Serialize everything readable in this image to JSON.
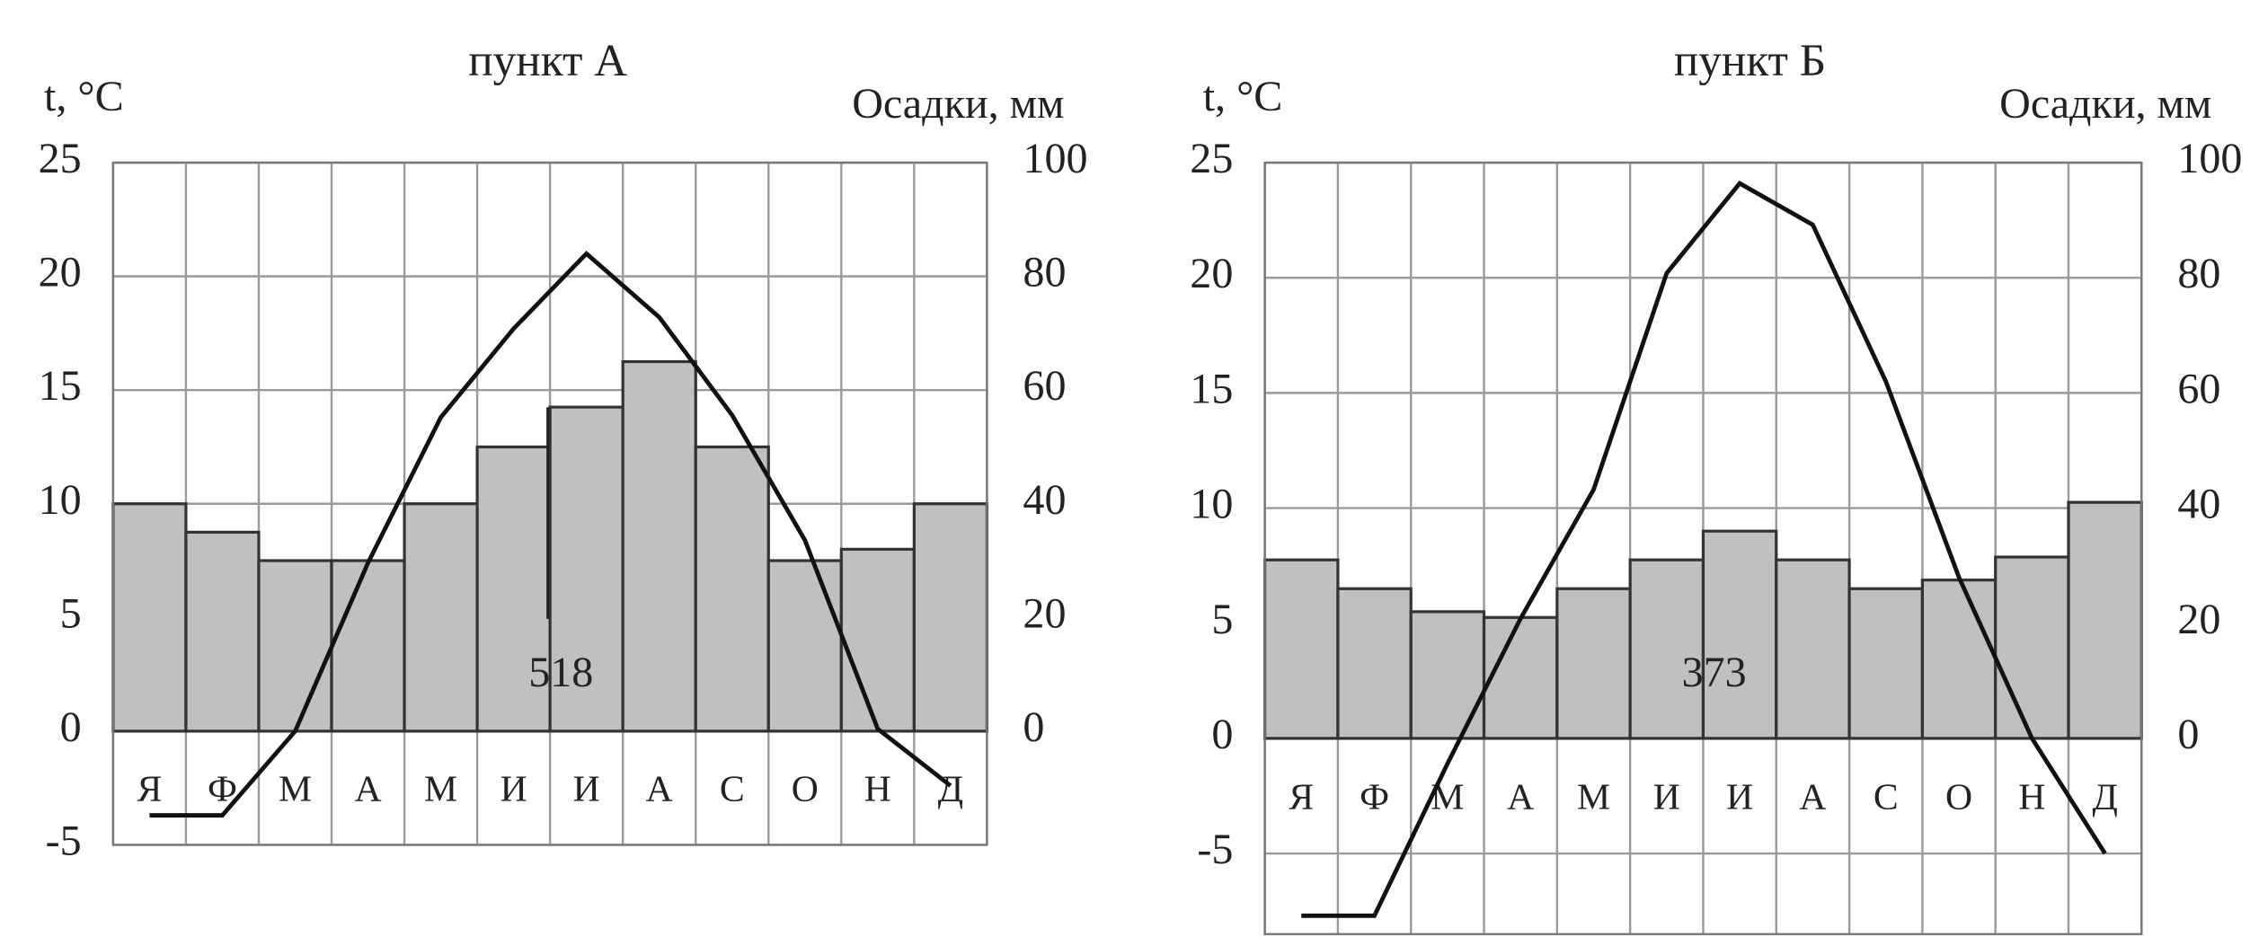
{
  "chart_data": [
    {
      "type": "bar",
      "title": "пункт А",
      "y_label": "t, °C",
      "y2_label": "Осадки, мм",
      "categories": [
        "Я",
        "Ф",
        "М",
        "А",
        "М",
        "И",
        "И",
        "А",
        "С",
        "О",
        "Н",
        "Д"
      ],
      "series": [
        {
          "type": "bar",
          "axis": "y2",
          "color": "#c0c0c0",
          "values": [
            40,
            35,
            30,
            30,
            40,
            50,
            57,
            65,
            50,
            30,
            32,
            40
          ]
        },
        {
          "type": "line",
          "color": "#111111",
          "values": [
            -3.7,
            -3.7,
            0,
            7.4,
            13.8,
            17.7,
            21,
            18.2,
            13.9,
            8.4,
            0.1,
            -2.4
          ]
        }
      ],
      "annotation": "518",
      "ylim": [
        -5,
        25
      ],
      "yticks": [
        -5,
        0,
        5,
        10,
        15,
        20,
        25
      ],
      "y2lim": [
        -20,
        100
      ],
      "y2ticks": [
        0,
        20,
        40,
        60,
        80,
        100
      ],
      "grid": true
    },
    {
      "type": "bar",
      "title": "пункт Б",
      "y_label": "t, °C",
      "y2_label": "Осадки, мм",
      "categories": [
        "Я",
        "Ф",
        "М",
        "А",
        "М",
        "И",
        "И",
        "А",
        "С",
        "О",
        "Н",
        "Д"
      ],
      "series": [
        {
          "type": "bar",
          "axis": "y2",
          "color": "#c0c0c0",
          "values": [
            31,
            26,
            22,
            21,
            26,
            31,
            36,
            31,
            26,
            27.5,
            31.5,
            41
          ]
        },
        {
          "type": "line",
          "color": "#111111",
          "values": [
            -7.7,
            -7.7,
            -1.1,
            5.2,
            10.8,
            20.2,
            24.1,
            22.3,
            15.5,
            7,
            0,
            -5
          ]
        }
      ],
      "annotation": "373",
      "ylim": [
        -8.5,
        25
      ],
      "yticks": [
        -5,
        0,
        5,
        10,
        15,
        20,
        25
      ],
      "y2lim": [
        -34,
        100
      ],
      "y2ticks": [
        0,
        20,
        40,
        60,
        80,
        100
      ],
      "grid": true
    }
  ]
}
